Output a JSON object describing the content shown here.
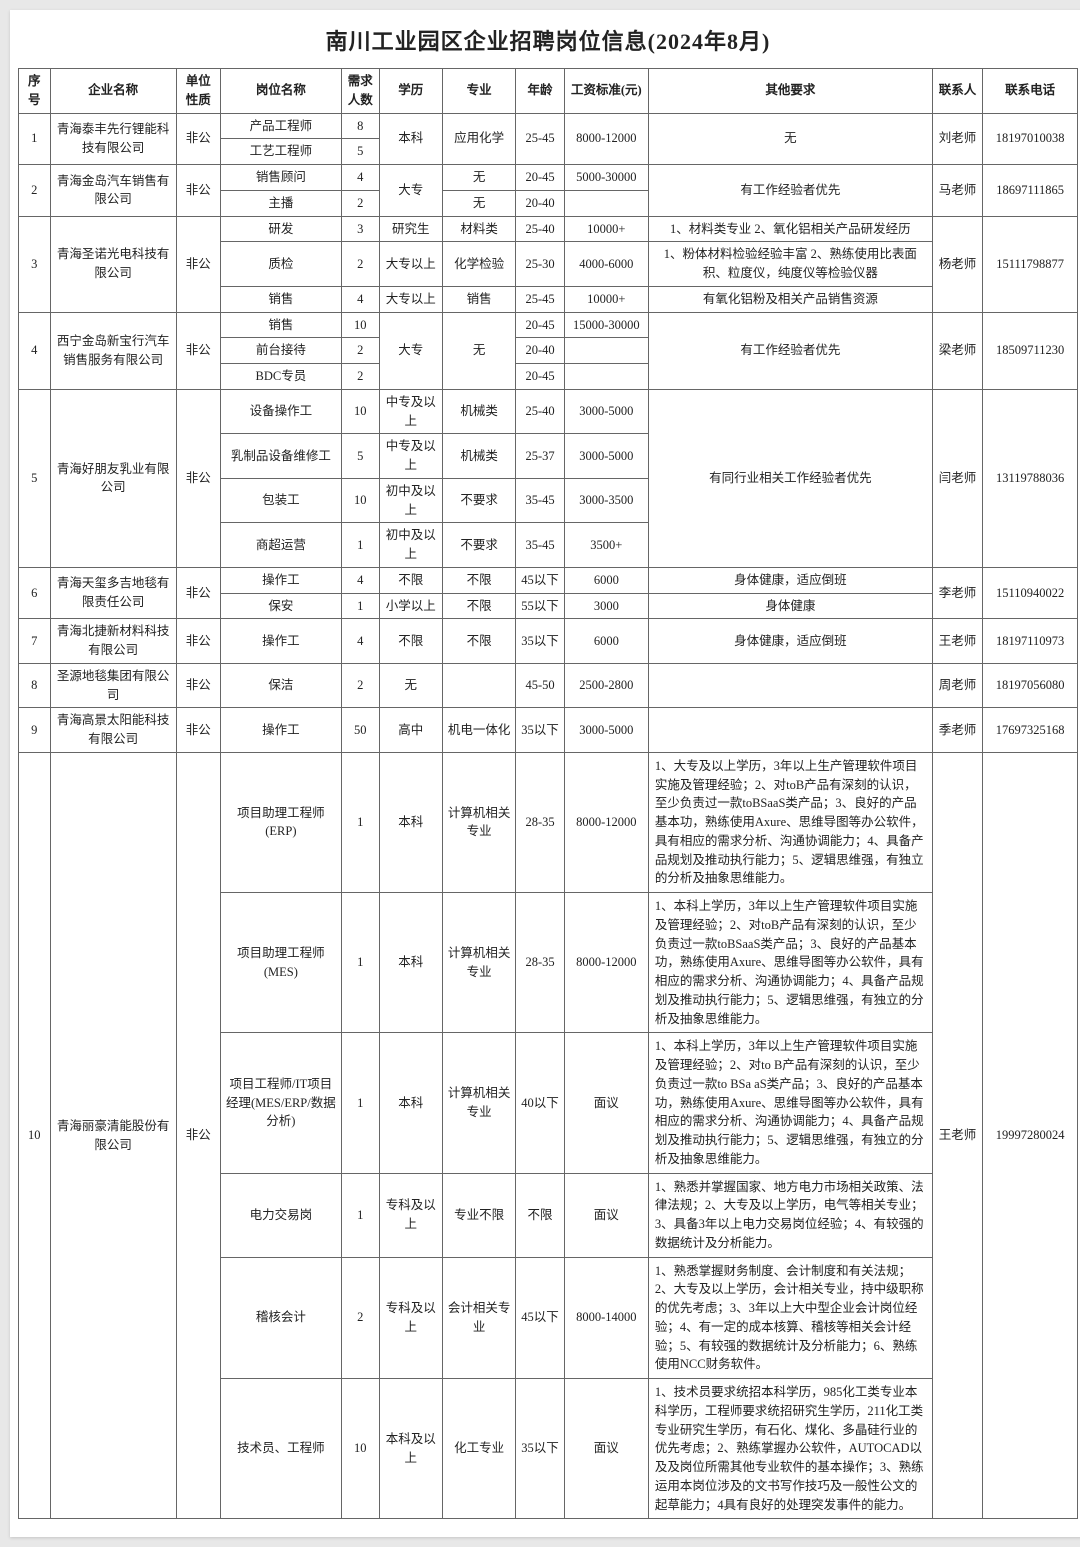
{
  "title": "南川工业园区企业招聘岗位信息(2024年8月)",
  "headers": {
    "seq": "序号",
    "company": "企业名称",
    "nature": "单位性质",
    "position": "岗位名称",
    "count": "需求人数",
    "education": "学历",
    "major": "专业",
    "age": "年龄",
    "salary": "工资标准(元)",
    "requirements": "其他要求",
    "contact": "联系人",
    "phone": "联系电话"
  },
  "r1": {
    "seq": "1",
    "company": "青海泰丰先行锂能科技有限公司",
    "nature": "非公",
    "p1": "产品工程师",
    "c1": "8",
    "p2": "工艺工程师",
    "c2": "5",
    "edu": "本科",
    "major": "应用化学",
    "age": "25-45",
    "salary": "8000-12000",
    "req": "无",
    "contact": "刘老师",
    "phone": "18197010038"
  },
  "r2": {
    "seq": "2",
    "company": "青海金岛汽车销售有限公司",
    "nature": "非公",
    "p1": "销售顾问",
    "c1": "4",
    "p2": "主播",
    "c2": "2",
    "edu": "大专",
    "major1": "无",
    "major2": "无",
    "age1": "20-45",
    "age2": "20-40",
    "salary": "5000-30000",
    "req": "有工作经验者优先",
    "contact": "马老师",
    "phone": "18697111865"
  },
  "r3": {
    "seq": "3",
    "company": "青海圣诺光电科技有限公司",
    "nature": "非公",
    "p1": "研发",
    "c1": "3",
    "edu1": "研究生",
    "major1": "材料类",
    "age1": "25-40",
    "sal1": "10000+",
    "req1": "1、材料类专业\n2、氧化铝相关产品研发经历",
    "p2": "质检",
    "c2": "2",
    "edu2": "大专以上",
    "major2": "化学检验",
    "age2": "25-30",
    "sal2": "4000-6000",
    "req2": "1、粉体材料检验经验丰富\n2、熟练使用比表面积、粒度仪，纯度仪等检验仪器",
    "p3": "销售",
    "c3": "4",
    "edu3": "大专以上",
    "major3": "销售",
    "age3": "25-45",
    "sal3": "10000+",
    "req3": "有氧化铝粉及相关产品销售资源",
    "contact": "杨老师",
    "phone": "15111798877"
  },
  "r4": {
    "seq": "4",
    "company": "西宁金岛新宝行汽车销售服务有限公司",
    "nature": "非公",
    "p1": "销售",
    "c1": "10",
    "age1": "20-45",
    "sal1": "15000-30000",
    "p2": "前台接待",
    "c2": "2",
    "age2": "20-40",
    "p3": "BDC专员",
    "c3": "2",
    "age3": "20-45",
    "edu": "大专",
    "major": "无",
    "req": "有工作经验者优先",
    "contact": "梁老师",
    "phone": "18509711230"
  },
  "r5": {
    "seq": "5",
    "company": "青海好朋友乳业有限公司",
    "nature": "非公",
    "p1": "设备操作工",
    "c1": "10",
    "edu1": "中专及以上",
    "major1": "机械类",
    "age1": "25-40",
    "sal1": "3000-5000",
    "p2": "乳制品设备维修工",
    "c2": "5",
    "edu2": "中专及以上",
    "major2": "机械类",
    "age2": "25-37",
    "sal2": "3000-5000",
    "p3": "包装工",
    "c3": "10",
    "edu3": "初中及以上",
    "major3": "不要求",
    "age3": "35-45",
    "sal3": "3000-3500",
    "p4": "商超运营",
    "c4": "1",
    "edu4": "初中及以上",
    "major4": "不要求",
    "age4": "35-45",
    "sal4": "3500+",
    "req": "有同行业相关工作经验者优先",
    "contact": "闫老师",
    "phone": "13119788036"
  },
  "r6": {
    "seq": "6",
    "company": "青海天玺多吉地毯有限责任公司",
    "nature": "非公",
    "p1": "操作工",
    "c1": "4",
    "edu1": "不限",
    "major1": "不限",
    "age1": "45以下",
    "sal1": "6000",
    "req1": "身体健康，适应倒班",
    "p2": "保安",
    "c2": "1",
    "edu2": "小学以上",
    "major2": "不限",
    "age2": "55以下",
    "sal2": "3000",
    "req2": "身体健康",
    "contact": "李老师",
    "phone": "15110940022"
  },
  "r7": {
    "seq": "7",
    "company": "青海北捷新材料科技有限公司",
    "nature": "非公",
    "p1": "操作工",
    "c1": "4",
    "edu": "不限",
    "major": "不限",
    "age": "35以下",
    "sal": "6000",
    "req": "身体健康，适应倒班",
    "contact": "王老师",
    "phone": "18197110973"
  },
  "r8": {
    "seq": "8",
    "company": "圣源地毯集团有限公司",
    "nature": "非公",
    "p1": "保洁",
    "c1": "2",
    "edu": "无",
    "major": "",
    "age": "45-50",
    "sal": "2500-2800",
    "req": "",
    "contact": "周老师",
    "phone": "18197056080"
  },
  "r9": {
    "seq": "9",
    "company": "青海高景太阳能科技有限公司",
    "nature": "非公",
    "p1": "操作工",
    "c1": "50",
    "edu": "高中",
    "major": "机电一体化",
    "age": "35以下",
    "sal": "3000-5000",
    "req": "",
    "contact": "季老师",
    "phone": "17697325168"
  },
  "r10": {
    "seq": "10",
    "company": "青海丽豪清能股份有限公司",
    "nature": "非公",
    "p1": "项目助理工程师(ERP)",
    "c1": "1",
    "edu1": "本科",
    "major1": "计算机相关专业",
    "age1": "28-35",
    "sal1": "8000-12000",
    "req1": "1、大专及以上学历，3年以上生产管理软件项目实施及管理经验；2、对toB产品有深刻的认识，至少负责过一款toBSaaS类产品；3、良好的产品基本功，熟练使用Axure、思维导图等办公软件，具有相应的需求分析、沟通协调能力；4、具备产品规划及推动执行能力；5、逻辑思维强，有独立的分析及抽象思维能力。",
    "p2": "项目助理工程师(MES)",
    "c2": "1",
    "edu2": "本科",
    "major2": "计算机相关专业",
    "age2": "28-35",
    "sal2": "8000-12000",
    "req2": "1、本科上学历，3年以上生产管理软件项目实施及管理经验；2、对toB产品有深刻的认识，至少负责过一款toBSaaS类产品；3、良好的产品基本功，熟练使用Axure、思维导图等办公软件，具有相应的需求分析、沟通协调能力；4、具备产品规划及推动执行能力；5、逻辑思维强，有独立的分析及抽象思维能力。",
    "p3": "项目工程师/IT项目经理(MES/ERP/数据分析)",
    "c3": "1",
    "edu3": "本科",
    "major3": "计算机相关专业",
    "age3": "40以下",
    "sal3": "面议",
    "req3": "1、本科上学历，3年以上生产管理软件项目实施及管理经验；2、对to B产品有深刻的认识，至少负责过一款to BSa aS类产品；3、良好的产品基本功，熟练使用Axure、思维导图等办公软件，具有相应的需求分析、沟通协调能力；4、具备产品规划及推动执行能力；5、逻辑思维强，有独立的分析及抽象思维能力。",
    "p4": "电力交易岗",
    "c4": "1",
    "edu4": "专科及以上",
    "major4": "专业不限",
    "age4": "不限",
    "sal4": "面议",
    "req4": "1、熟悉并掌握国家、地方电力市场相关政策、法律法规；2、大专及以上学历，电气等相关专业；3、具备3年以上电力交易岗位经验；4、有较强的数据统计及分析能力。",
    "p5": "稽核会计",
    "c5": "2",
    "edu5": "专科及以上",
    "major5": "会计相关专业",
    "age5": "45以下",
    "sal5": "8000-14000",
    "req5": "1、熟悉掌握财务制度、会计制度和有关法规；2、大专及以上学历，会计相关专业，持中级职称的优先考虑；3、3年以上大中型企业会计岗位经验；4、有一定的成本核算、稽核等相关会计经验；5、有较强的数据统计及分析能力；6、熟练使用NCC财务软件。",
    "p6": "技术员、工程师",
    "c6": "10",
    "edu6": "本科及以上",
    "major6": "化工专业",
    "age6": "35以下",
    "sal6": "面议",
    "req6": "1、技术员要求统招本科学历，985化工类专业本科学历，工程师要求统招研究生学历，211化工类专业研究生学历，有石化、煤化、多晶硅行业的优先考虑；2、熟练掌握办公软件，AUTOCAD以及及岗位所需其他专业软件的基本操作；3、熟练运用本岗位涉及的文书写作技巧及一般性公文的起草能力；4具有良好的处理突发事件的能力。",
    "contact": "王老师",
    "phone": "19997280024"
  }
}
